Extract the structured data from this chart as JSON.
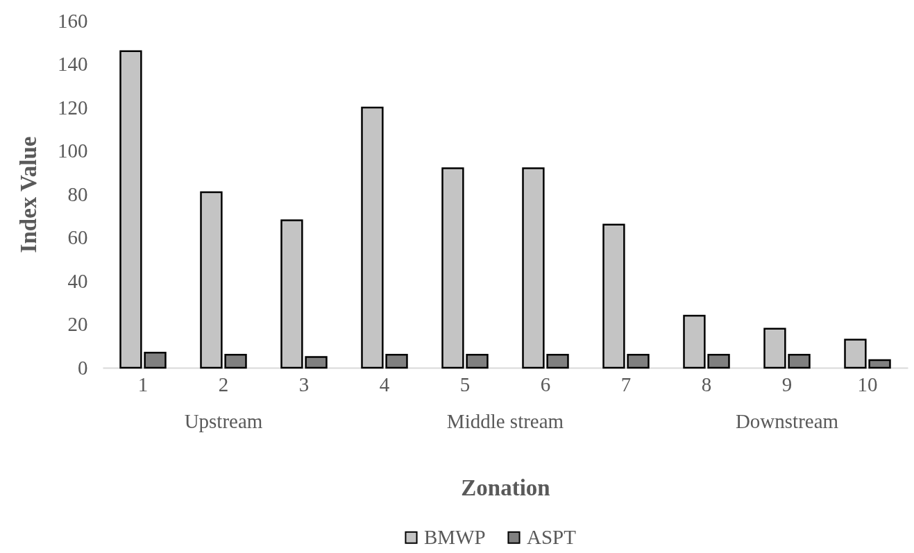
{
  "chart_data": {
    "type": "bar",
    "xlabel": "Zonation",
    "ylabel": "Index Value",
    "categories": [
      "1",
      "2",
      "3",
      "4",
      "5",
      "6",
      "7",
      "8",
      "9",
      "10"
    ],
    "series": [
      {
        "name": "BMWP",
        "color": "#c4c4c4",
        "values": [
          146,
          81,
          68,
          120,
          92,
          92,
          66,
          24,
          18,
          13
        ]
      },
      {
        "name": "ASPT",
        "color": "#808080",
        "values": [
          7,
          6,
          5,
          6,
          6,
          6,
          6,
          6,
          6,
          3.5
        ]
      }
    ],
    "ylim": [
      0,
      160
    ],
    "yticks": [
      0,
      20,
      40,
      60,
      80,
      100,
      120,
      140,
      160
    ],
    "grid": false,
    "legend": "bottom",
    "annotations": [
      "Upstream",
      "Middle stream",
      "Downstream"
    ]
  }
}
